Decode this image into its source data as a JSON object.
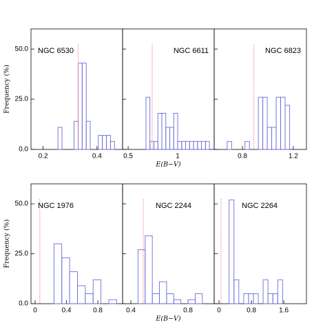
{
  "chart_data": [
    {
      "type": "histogram",
      "title": "NGC 6530",
      "ylabel": "Frequency (%)",
      "bins": [
        0.255,
        0.27,
        0.285,
        0.3,
        0.315,
        0.33,
        0.345,
        0.36,
        0.375,
        0.39,
        0.405,
        0.42,
        0.435,
        0.45,
        0.465
      ],
      "values": [
        11,
        0,
        0,
        0,
        14,
        43,
        43,
        14,
        0,
        0,
        7,
        7,
        7,
        4
      ],
      "color": "#6b6bd8",
      "vline_x": 0.33,
      "vline_color": "#f08080",
      "xlim": [
        0.155,
        0.495
      ],
      "xticks": [
        0.2,
        0.4
      ],
      "ylim": [
        0,
        60
      ],
      "yticks": [
        {
          "value": 0,
          "label": "0.0"
        },
        {
          "value": 25,
          "label": "25.0"
        },
        {
          "value": 50,
          "label": "50.0"
        }
      ]
    },
    {
      "type": "histogram",
      "title": "NGC 6611",
      "xlabel": "E(B−V)",
      "bins": [
        0.68,
        0.72,
        0.76,
        0.8,
        0.84,
        0.88,
        0.92,
        0.96,
        1.0,
        1.04,
        1.08,
        1.12,
        1.16,
        1.2,
        1.24,
        1.28,
        1.32
      ],
      "values": [
        26,
        4,
        4,
        18,
        18,
        11,
        11,
        18,
        4,
        4,
        4,
        4,
        4,
        4,
        4,
        4
      ],
      "color": "#6b6bd8",
      "vline_x": 0.743,
      "vline_color": "#f08080",
      "xlim": [
        0.444,
        1.368
      ],
      "xticks": [
        0.5,
        1
      ],
      "ylim": [
        0,
        60
      ],
      "yticks": [
        0,
        25,
        50
      ]
    },
    {
      "type": "histogram",
      "title": "NGC 6823",
      "bins": [
        0.68,
        0.715,
        0.75,
        0.785,
        0.82,
        0.855,
        0.89,
        0.925,
        0.96,
        0.995,
        1.03,
        1.065,
        1.1,
        1.135,
        1.17
      ],
      "values": [
        4,
        0,
        0,
        0,
        4,
        0,
        0,
        26,
        26,
        11,
        11,
        26,
        26,
        22
      ],
      "color": "#6b6bd8",
      "vline_x": 0.89,
      "vline_color": "#f08080",
      "xlim": [
        0.578,
        1.303
      ],
      "xticks": [
        0.8,
        1.2
      ],
      "ylim": [
        0,
        60
      ],
      "yticks": [
        0,
        25,
        50
      ]
    },
    {
      "type": "histogram",
      "title": "NGC 1976",
      "ylabel": "Frequency (%)",
      "bins": [
        0.24,
        0.34,
        0.44,
        0.54,
        0.64,
        0.74,
        0.84,
        0.94,
        1.04
      ],
      "values": [
        30,
        23,
        16,
        9,
        5,
        12,
        0,
        2
      ],
      "color": "#6b6bd8",
      "vline_x": 0.06,
      "vline_color": "#f08080",
      "xlim": [
        -0.053,
        1.116
      ],
      "xticks": [
        0,
        0.4,
        0.8
      ],
      "ylim": [
        0,
        60
      ],
      "yticks": [
        {
          "value": 0,
          "label": "0.0"
        },
        {
          "value": 25,
          "label": "25.0"
        },
        {
          "value": 50,
          "label": "50.0"
        }
      ]
    },
    {
      "type": "histogram",
      "title": "NGC 2244",
      "xlabel": "E(B−V)",
      "bins": [
        0.45,
        0.5,
        0.55,
        0.6,
        0.65,
        0.7,
        0.75,
        0.8,
        0.85,
        0.9
      ],
      "values": [
        27,
        34,
        5,
        11,
        5,
        2,
        0,
        2,
        5
      ],
      "color": "#6b6bd8",
      "vline_x": 0.487,
      "vline_color": "#f08080",
      "xlim": [
        0.342,
        0.983
      ],
      "xticks": [
        0.4,
        0.8
      ],
      "ylim": [
        0,
        60
      ],
      "yticks": [
        0,
        25,
        50
      ]
    },
    {
      "type": "histogram",
      "title": "NGC 2264",
      "bins": [
        0.25,
        0.37,
        0.49,
        0.61,
        0.73,
        0.85,
        0.97,
        1.09,
        1.21,
        1.33,
        1.45,
        1.57
      ],
      "values": [
        52,
        12,
        0,
        5,
        5,
        5,
        0,
        12,
        5,
        5,
        12
      ],
      "color": "#6b6bd8",
      "vline_x": 0.05,
      "vline_color": "#f08080",
      "xlim": [
        -0.119,
        2.16
      ],
      "xticks": [
        0,
        0.8,
        1.6
      ],
      "ylim": [
        0,
        60
      ],
      "yticks": [
        0,
        25,
        50
      ]
    }
  ]
}
